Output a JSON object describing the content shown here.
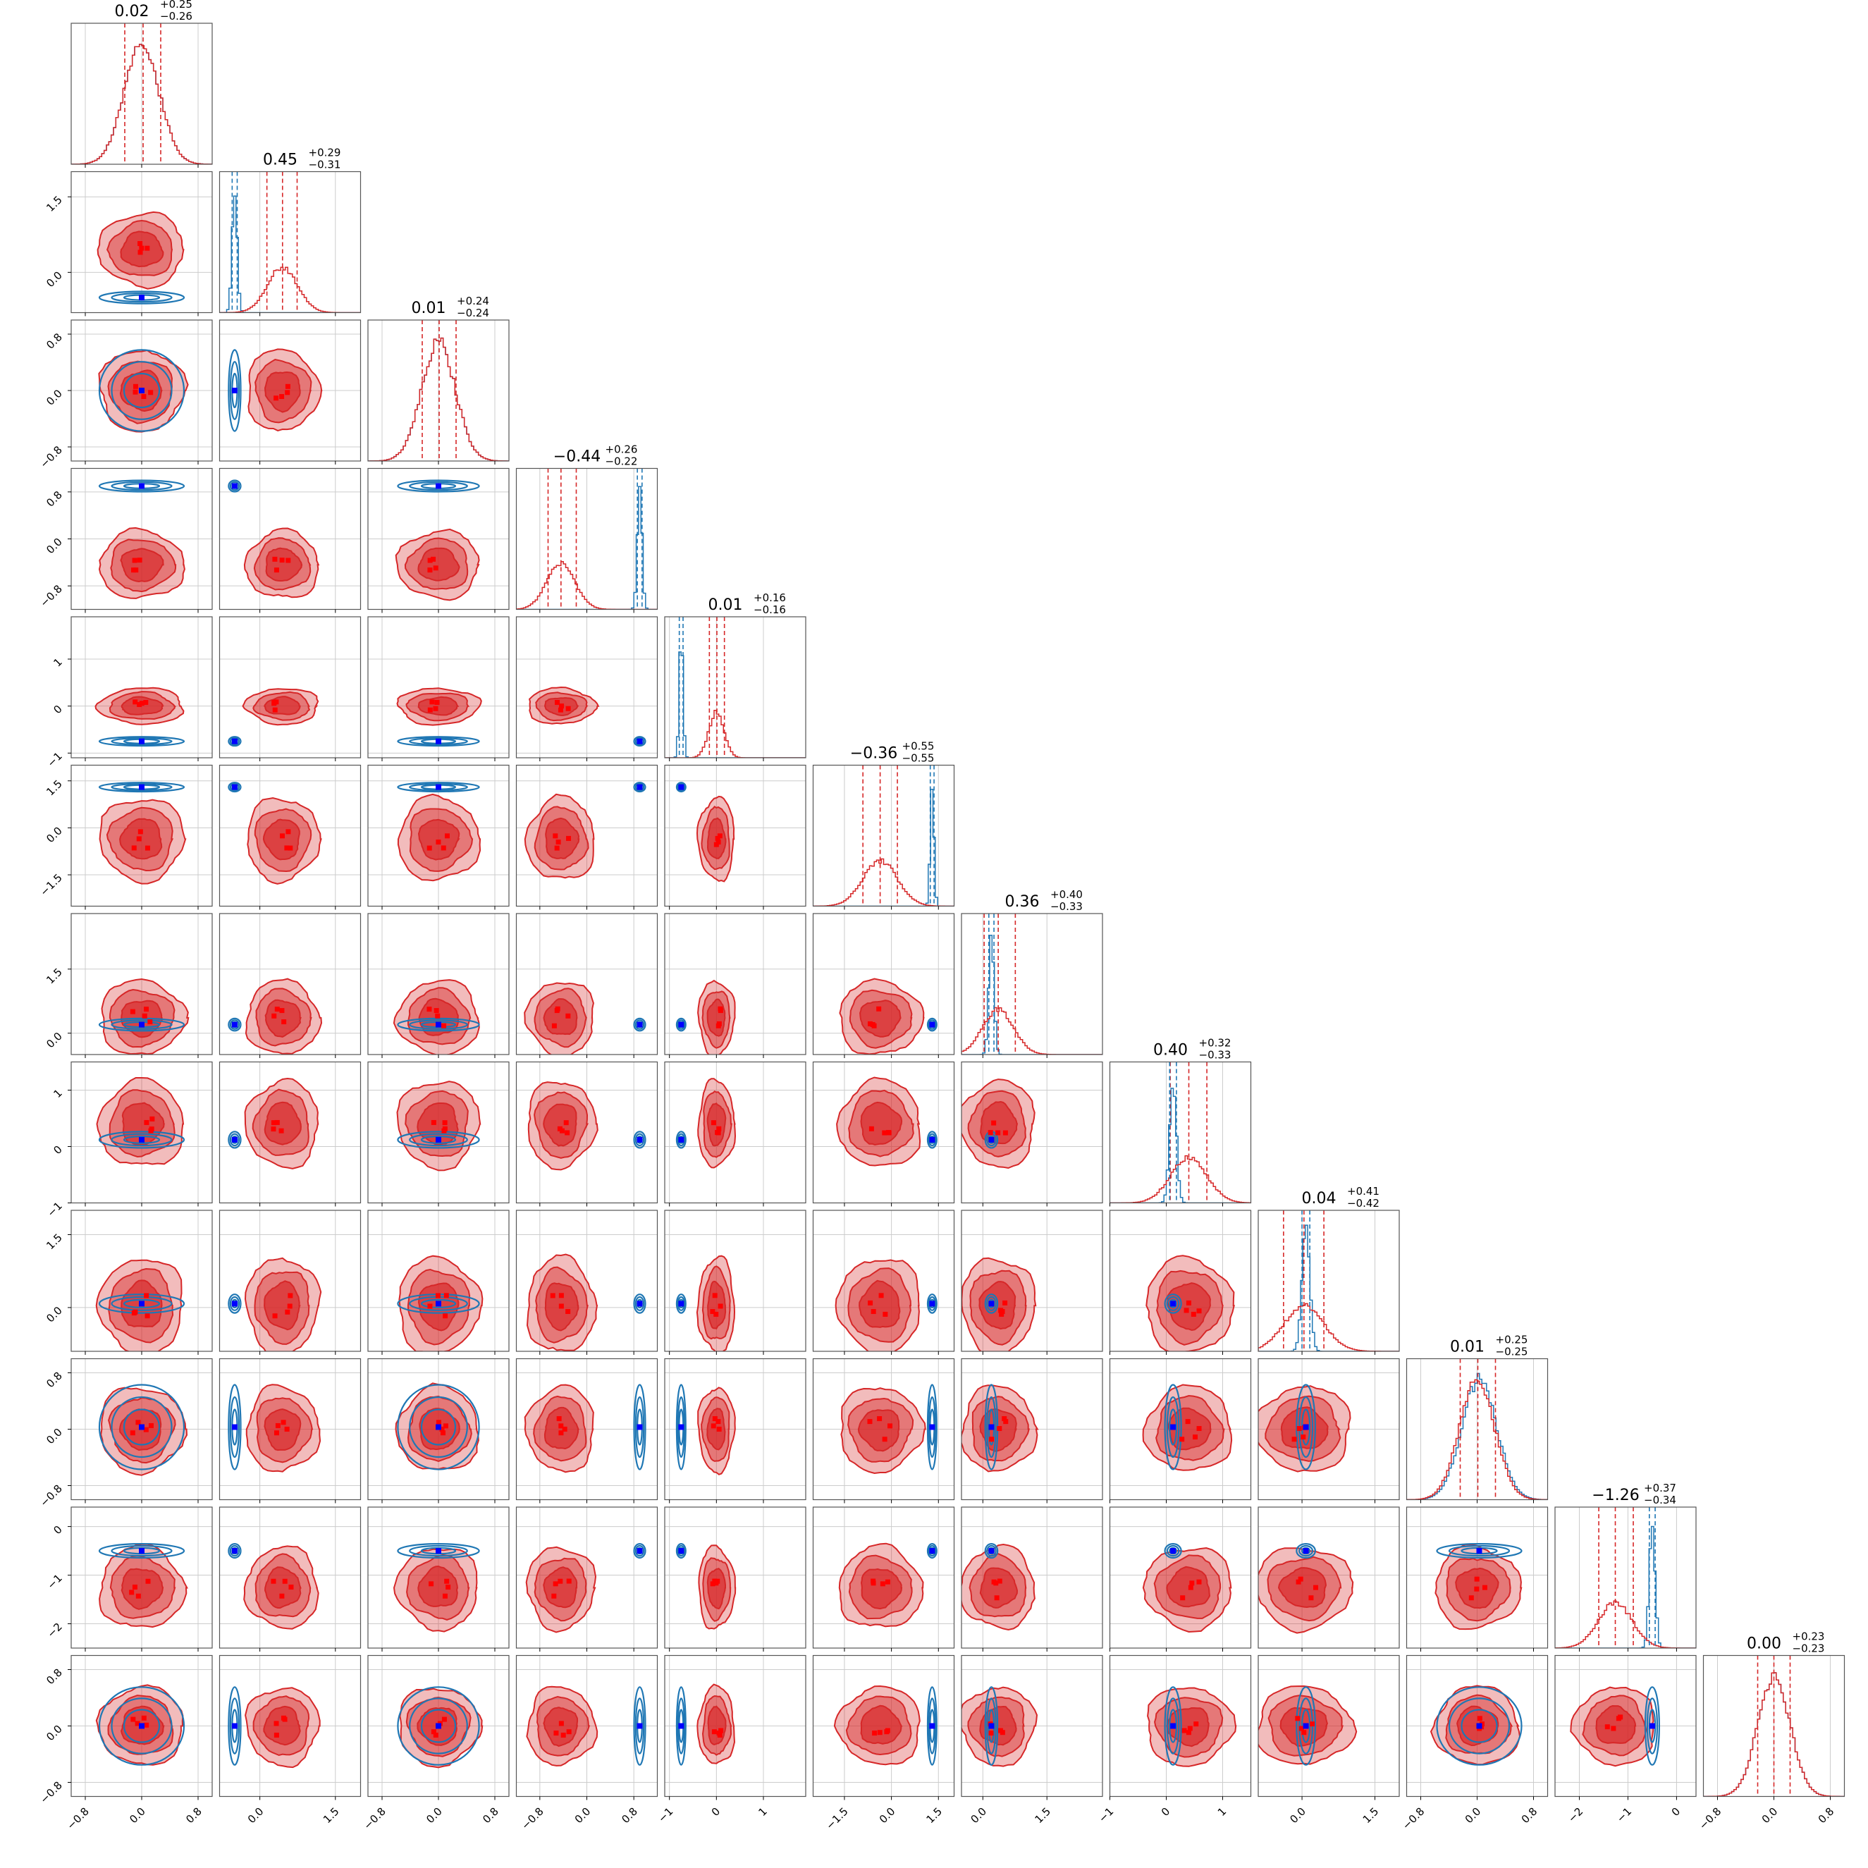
{
  "colors": {
    "posterior_fill": "#d62728",
    "posterior_line": "#d62728",
    "reference": "#1f77b4",
    "truth_marker": "#0000ff",
    "grid": "#cccccc",
    "frame": "#555555"
  },
  "chart_data": {
    "type": "corner",
    "n_params": 12,
    "grid": true,
    "series": [
      {
        "color": "red"
      },
      {
        "color": "blue"
      }
    ],
    "params": [
      {
        "title": "0.02",
        "plus": "+0.25",
        "minus": "−0.26",
        "median": 0.02,
        "lo": -0.24,
        "hi": 0.27,
        "range": [
          -1.0,
          1.0
        ],
        "ticks": [
          -0.8,
          0.0,
          0.8
        ],
        "tick_labels": [
          "−0.8",
          "0.0",
          "0.8"
        ],
        "red_mean": 0.0,
        "red_sd": 0.25,
        "blue_mean": 0.0,
        "blue_sd": 0.25
      },
      {
        "title": "0.45",
        "plus": "+0.29",
        "minus": "−0.31",
        "median": 0.45,
        "lo": 0.14,
        "hi": 0.74,
        "range": [
          -0.8,
          2.0
        ],
        "ticks": [
          0.0,
          1.5
        ],
        "tick_labels": [
          "0.0",
          "1.5"
        ],
        "y_ticks": [
          0.0,
          1.5
        ],
        "y_tick_labels": [
          "0.0",
          "1.5"
        ],
        "red_mean": 0.45,
        "red_sd": 0.3,
        "blue_mean": -0.5,
        "blue_sd": 0.05
      },
      {
        "title": "0.01",
        "plus": "+0.24",
        "minus": "−0.24",
        "median": 0.01,
        "lo": -0.23,
        "hi": 0.25,
        "range": [
          -1.0,
          1.0
        ],
        "ticks": [
          -0.8,
          0.0,
          0.8
        ],
        "tick_labels": [
          "−0.8",
          "0.0",
          "0.8"
        ],
        "red_mean": 0.0,
        "red_sd": 0.24,
        "blue_mean": 0.0,
        "blue_sd": 0.24
      },
      {
        "title": "−0.44",
        "plus": "+0.26",
        "minus": "−0.22",
        "median": -0.44,
        "lo": -0.66,
        "hi": -0.18,
        "range": [
          -1.2,
          1.2
        ],
        "ticks": [
          -0.8,
          0.0,
          0.8
        ],
        "tick_labels": [
          "−0.8",
          "0.0",
          "0.8"
        ],
        "red_mean": -0.44,
        "red_sd": 0.24,
        "blue_mean": 0.9,
        "blue_sd": 0.04
      },
      {
        "title": "0.01",
        "plus": "+0.16",
        "minus": "−0.16",
        "median": 0.01,
        "lo": -0.15,
        "hi": 0.17,
        "range": [
          -1.1,
          1.9
        ],
        "ticks": [
          -1,
          0,
          1
        ],
        "tick_labels": [
          "−1",
          "0",
          "1"
        ],
        "red_mean": 0.0,
        "red_sd": 0.16,
        "blue_mean": -0.75,
        "blue_sd": 0.04
      },
      {
        "title": "−0.36",
        "plus": "+0.55",
        "minus": "−0.55",
        "median": -0.36,
        "lo": -0.91,
        "hi": 0.19,
        "range": [
          -2.5,
          2.0
        ],
        "ticks": [
          -1.5,
          0.0,
          1.5
        ],
        "tick_labels": [
          "−1.5",
          "0.0",
          "1.5"
        ],
        "red_mean": -0.36,
        "red_sd": 0.55,
        "blue_mean": 1.3,
        "blue_sd": 0.06
      },
      {
        "title": "0.36",
        "plus": "+0.40",
        "minus": "−0.33",
        "median": 0.36,
        "lo": 0.03,
        "hi": 0.76,
        "range": [
          -0.5,
          2.8
        ],
        "ticks": [
          0.0,
          1.5
        ],
        "tick_labels": [
          "0.0",
          "1.5"
        ],
        "y_ticks": [
          0.0,
          1.5
        ],
        "y_tick_labels": [
          "0.0",
          "1.5"
        ],
        "red_mean": 0.36,
        "red_sd": 0.36,
        "blue_mean": 0.2,
        "blue_sd": 0.06
      },
      {
        "title": "0.40",
        "plus": "+0.32",
        "minus": "−0.33",
        "median": 0.4,
        "lo": 0.07,
        "hi": 0.72,
        "range": [
          -1.0,
          1.5
        ],
        "ticks": [
          -1,
          0,
          1
        ],
        "tick_labels": [
          "−1",
          "0",
          "1"
        ],
        "red_mean": 0.4,
        "red_sd": 0.32,
        "blue_mean": 0.12,
        "blue_sd": 0.06
      },
      {
        "title": "0.04",
        "plus": "+0.41",
        "minus": "−0.42",
        "median": 0.04,
        "lo": -0.38,
        "hi": 0.45,
        "range": [
          -0.9,
          2.0
        ],
        "ticks": [
          0.0,
          1.5
        ],
        "tick_labels": [
          "0.0",
          "1.5"
        ],
        "y_ticks": [
          0.0,
          1.5
        ],
        "y_tick_labels": [
          "0.0",
          "1.5"
        ],
        "red_mean": 0.04,
        "red_sd": 0.41,
        "blue_mean": 0.08,
        "blue_sd": 0.08
      },
      {
        "title": "0.01",
        "plus": "+0.25",
        "minus": "−0.25",
        "median": 0.01,
        "lo": -0.24,
        "hi": 0.26,
        "range": [
          -1.0,
          1.0
        ],
        "ticks": [
          -0.8,
          0.0,
          0.8
        ],
        "tick_labels": [
          "−0.8",
          "0.0",
          "0.8"
        ],
        "red_mean": 0.0,
        "red_sd": 0.25,
        "blue_mean": 0.03,
        "blue_sd": 0.25
      },
      {
        "title": "−1.26",
        "plus": "+0.37",
        "minus": "−0.34",
        "median": -1.26,
        "lo": -1.6,
        "hi": -0.89,
        "range": [
          -2.5,
          0.4
        ],
        "ticks": [
          -2,
          -1,
          0
        ],
        "tick_labels": [
          "−2",
          "−1",
          "0"
        ],
        "red_mean": -1.26,
        "red_sd": 0.35,
        "blue_mean": -0.5,
        "blue_sd": 0.06
      },
      {
        "title": "0.00",
        "plus": "+0.23",
        "minus": "−0.23",
        "median": 0.0,
        "lo": -0.23,
        "hi": 0.23,
        "range": [
          -1.0,
          1.0
        ],
        "ticks": [
          -0.8,
          0.0,
          0.8
        ],
        "tick_labels": [
          "−0.8",
          "0.0",
          "0.8"
        ],
        "red_mean": 0.0,
        "red_sd": 0.23,
        "blue_mean": 0.0,
        "blue_sd": 0.23
      }
    ]
  }
}
